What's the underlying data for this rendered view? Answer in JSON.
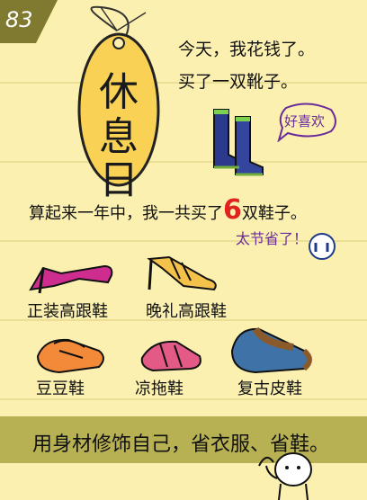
{
  "badge": {
    "number": "83",
    "bg": "#7f7a30"
  },
  "tag": {
    "line1": "休",
    "line2": "息",
    "line3": "日",
    "fill": "#f8d155"
  },
  "diary": {
    "line1": "今天，我花钱了。",
    "line2": "买了一双靴子。"
  },
  "boots_note": "好喜欢",
  "summary": {
    "before": "算起来一年中，我一共买了",
    "count": "6",
    "after": "双鞋子。"
  },
  "remark": "太节省了！",
  "shoes": [
    {
      "label": "正装高跟鞋",
      "icon": "pink-high-heel-icon"
    },
    {
      "label": "晚礼高跟鞋",
      "icon": "gold-strappy-heel-icon"
    },
    {
      "label": "豆豆鞋",
      "icon": "orange-loafer-icon"
    },
    {
      "label": "凉拖鞋",
      "icon": "pink-sandal-icon"
    },
    {
      "label": "复古皮鞋",
      "icon": "brown-oxford-icon"
    }
  ],
  "footer": "用身材修饰自己，省衣服、省鞋。",
  "colors": {
    "background": "#fbf0b0",
    "band": "#b7b154",
    "accent_red": "#e0231f",
    "note_purple": "#6b2c9a"
  }
}
